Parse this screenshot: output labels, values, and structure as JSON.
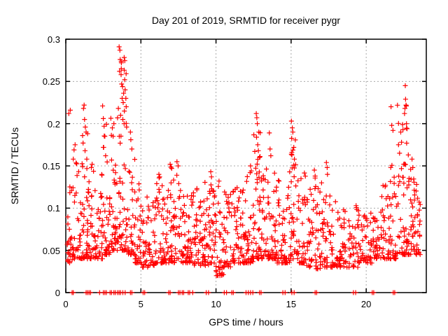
{
  "page": {
    "background": "#ffffff"
  },
  "chart_data": {
    "type": "scatter",
    "title": "Day 201 of 2019, SRMTID for receiver pygr",
    "xlabel": "GPS time / hours",
    "ylabel": "SRMTID / TECUs",
    "xlim": [
      0,
      24
    ],
    "ylim": [
      0,
      0.3
    ],
    "xticks": [
      0,
      5,
      10,
      15,
      20
    ],
    "xtick_labels": [
      "0",
      "5",
      "10",
      "15",
      "20"
    ],
    "yticks": [
      0,
      0.05,
      0.1,
      0.15,
      0.2,
      0.25,
      0.3
    ],
    "ytick_labels": [
      "0",
      "0.05",
      "0.1",
      "0.15",
      "0.2",
      "0.25",
      "0.3"
    ],
    "grid": true,
    "legend": "none",
    "marker": "plus",
    "marker_size": 7,
    "marker_color": "#ff0000",
    "axis_color": "#000000",
    "grid_color": "#a8a8a8",
    "seed": 1337,
    "band_segments": [
      [
        0.0,
        0.5,
        30,
        0.035,
        0.13,
        1.9
      ],
      [
        0.5,
        1.0,
        30,
        0.04,
        0.155,
        2.2
      ],
      [
        1.0,
        1.5,
        38,
        0.04,
        0.21,
        2.8
      ],
      [
        1.5,
        2.0,
        32,
        0.04,
        0.15,
        2.1
      ],
      [
        2.0,
        2.5,
        30,
        0.04,
        0.14,
        2.0
      ],
      [
        2.5,
        3.0,
        36,
        0.045,
        0.2,
        2.7
      ],
      [
        3.0,
        3.5,
        40,
        0.05,
        0.21,
        2.4
      ],
      [
        3.5,
        4.1,
        46,
        0.05,
        0.28,
        2.9
      ],
      [
        4.1,
        4.6,
        34,
        0.045,
        0.185,
        2.6
      ],
      [
        4.6,
        5.0,
        28,
        0.035,
        0.13,
        2.0
      ],
      [
        5.0,
        5.5,
        28,
        0.03,
        0.115,
        1.9
      ],
      [
        5.5,
        6.0,
        30,
        0.032,
        0.12,
        1.9
      ],
      [
        6.0,
        6.5,
        32,
        0.035,
        0.14,
        2.1
      ],
      [
        6.5,
        7.0,
        32,
        0.035,
        0.145,
        2.1
      ],
      [
        7.0,
        7.5,
        34,
        0.035,
        0.15,
        2.2
      ],
      [
        7.5,
        8.0,
        34,
        0.035,
        0.135,
        2.0
      ],
      [
        8.0,
        8.5,
        34,
        0.035,
        0.13,
        2.0
      ],
      [
        8.5,
        9.0,
        32,
        0.032,
        0.125,
        2.0
      ],
      [
        9.0,
        9.5,
        34,
        0.032,
        0.135,
        2.1
      ],
      [
        9.5,
        10.0,
        34,
        0.035,
        0.14,
        2.1
      ],
      [
        10.0,
        10.5,
        34,
        0.02,
        0.13,
        1.9
      ],
      [
        10.5,
        11.0,
        32,
        0.03,
        0.125,
        2.0
      ],
      [
        11.0,
        11.5,
        32,
        0.035,
        0.125,
        2.0
      ],
      [
        11.5,
        12.0,
        32,
        0.035,
        0.13,
        2.0
      ],
      [
        12.0,
        12.5,
        34,
        0.035,
        0.145,
        2.2
      ],
      [
        12.5,
        13.0,
        38,
        0.04,
        0.195,
        2.7
      ],
      [
        13.0,
        13.5,
        34,
        0.04,
        0.16,
        2.3
      ],
      [
        13.5,
        14.0,
        32,
        0.04,
        0.175,
        2.6
      ],
      [
        14.0,
        14.5,
        32,
        0.035,
        0.135,
        2.1
      ],
      [
        14.5,
        15.0,
        32,
        0.035,
        0.145,
        2.2
      ],
      [
        15.0,
        15.5,
        36,
        0.04,
        0.19,
        2.7
      ],
      [
        15.5,
        16.0,
        32,
        0.035,
        0.145,
        2.3
      ],
      [
        16.0,
        16.5,
        30,
        0.03,
        0.125,
        2.1
      ],
      [
        16.5,
        17.0,
        30,
        0.028,
        0.14,
        2.2
      ],
      [
        17.0,
        17.5,
        30,
        0.03,
        0.145,
        2.4
      ],
      [
        17.5,
        18.0,
        28,
        0.03,
        0.115,
        2.1
      ],
      [
        18.0,
        18.5,
        28,
        0.03,
        0.105,
        2.0
      ],
      [
        18.5,
        19.0,
        27,
        0.03,
        0.1,
        2.0
      ],
      [
        19.0,
        19.5,
        27,
        0.03,
        0.105,
        2.0
      ],
      [
        19.5,
        20.0,
        25,
        0.035,
        0.095,
        1.9
      ],
      [
        20.0,
        20.5,
        25,
        0.035,
        0.1,
        1.9
      ],
      [
        20.5,
        21.0,
        27,
        0.04,
        0.105,
        1.9
      ],
      [
        21.0,
        21.5,
        29,
        0.04,
        0.13,
        2.1
      ],
      [
        21.5,
        22.0,
        34,
        0.04,
        0.2,
        2.8
      ],
      [
        22.0,
        22.7,
        42,
        0.045,
        0.23,
        2.7
      ],
      [
        22.7,
        23.2,
        34,
        0.045,
        0.155,
        2.2
      ],
      [
        23.2,
        23.6,
        28,
        0.045,
        0.125,
        1.9
      ]
    ],
    "peak_points": [
      [
        0.2,
        0.212
      ],
      [
        0.3,
        0.216
      ],
      [
        0.5,
        0.158
      ],
      [
        0.55,
        0.169
      ],
      [
        0.62,
        0.175
      ],
      [
        1.12,
        0.186
      ],
      [
        1.15,
        0.177
      ],
      [
        1.18,
        0.218
      ],
      [
        1.22,
        0.222
      ],
      [
        1.25,
        0.205
      ],
      [
        1.28,
        0.168
      ],
      [
        1.3,
        0.196
      ],
      [
        1.35,
        0.19
      ],
      [
        1.4,
        0.158
      ],
      [
        1.7,
        0.148
      ],
      [
        1.75,
        0.152
      ],
      [
        2.45,
        0.221
      ],
      [
        2.5,
        0.206
      ],
      [
        2.5,
        0.172
      ],
      [
        2.55,
        0.197
      ],
      [
        2.6,
        0.185
      ],
      [
        2.65,
        0.162
      ],
      [
        3.1,
        0.195
      ],
      [
        3.15,
        0.185
      ],
      [
        3.2,
        0.2
      ],
      [
        3.5,
        0.218
      ],
      [
        3.55,
        0.291
      ],
      [
        3.58,
        0.262
      ],
      [
        3.6,
        0.287
      ],
      [
        3.62,
        0.276
      ],
      [
        3.65,
        0.21
      ],
      [
        3.68,
        0.258
      ],
      [
        3.7,
        0.272
      ],
      [
        3.72,
        0.247
      ],
      [
        3.75,
        0.23
      ],
      [
        3.78,
        0.244
      ],
      [
        3.8,
        0.205
      ],
      [
        3.82,
        0.225
      ],
      [
        3.85,
        0.236
      ],
      [
        3.88,
        0.2
      ],
      [
        3.9,
        0.215
      ],
      [
        3.92,
        0.252
      ],
      [
        3.95,
        0.24
      ],
      [
        4.0,
        0.23
      ],
      [
        4.02,
        0.22
      ],
      [
        4.05,
        0.196
      ],
      [
        4.3,
        0.19
      ],
      [
        4.33,
        0.181
      ],
      [
        4.4,
        0.17
      ],
      [
        6.2,
        0.14
      ],
      [
        6.25,
        0.137
      ],
      [
        6.95,
        0.152
      ],
      [
        7.05,
        0.147
      ],
      [
        7.4,
        0.155
      ],
      [
        7.48,
        0.15
      ],
      [
        9.65,
        0.143
      ],
      [
        9.7,
        0.137
      ],
      [
        10.2,
        0.132
      ],
      [
        12.3,
        0.15
      ],
      [
        12.35,
        0.144
      ],
      [
        12.68,
        0.212
      ],
      [
        12.7,
        0.184
      ],
      [
        12.72,
        0.207
      ],
      [
        12.75,
        0.2
      ],
      [
        12.78,
        0.175
      ],
      [
        12.82,
        0.168
      ],
      [
        12.85,
        0.19
      ],
      [
        12.9,
        0.16
      ],
      [
        13.55,
        0.189
      ],
      [
        13.6,
        0.17
      ],
      [
        13.65,
        0.162
      ],
      [
        14.2,
        0.132
      ],
      [
        15.02,
        0.203
      ],
      [
        15.05,
        0.166
      ],
      [
        15.08,
        0.195
      ],
      [
        15.12,
        0.19
      ],
      [
        15.18,
        0.172
      ],
      [
        15.22,
        0.158
      ],
      [
        16.55,
        0.145
      ],
      [
        16.6,
        0.138
      ],
      [
        17.35,
        0.154
      ],
      [
        17.4,
        0.148
      ],
      [
        17.42,
        0.14
      ],
      [
        21.65,
        0.22
      ],
      [
        21.7,
        0.198
      ],
      [
        21.78,
        0.192
      ],
      [
        22.15,
        0.175
      ],
      [
        22.22,
        0.165
      ],
      [
        22.3,
        0.19
      ],
      [
        22.35,
        0.178
      ],
      [
        22.42,
        0.199
      ],
      [
        22.45,
        0.193
      ],
      [
        22.5,
        0.152
      ],
      [
        22.55,
        0.212
      ],
      [
        22.58,
        0.218
      ],
      [
        22.6,
        0.245
      ],
      [
        22.62,
        0.229
      ],
      [
        22.65,
        0.222
      ],
      [
        22.68,
        0.2
      ],
      [
        22.72,
        0.194
      ],
      [
        22.8,
        0.163
      ],
      [
        23.05,
        0.158
      ],
      [
        23.1,
        0.148
      ],
      [
        23.35,
        0.128
      ]
    ],
    "zero_points_x": [
      0.42,
      0.5,
      1.35,
      1.45,
      1.55,
      1.65,
      2.25,
      2.5,
      2.6,
      2.7,
      2.95,
      3.05,
      3.2,
      3.3,
      3.45,
      3.55,
      3.65,
      3.8,
      3.95,
      4.3,
      4.4,
      5.15,
      5.25,
      6.85,
      6.95,
      7.5,
      7.6,
      7.75,
      7.85,
      8.15,
      8.25,
      8.45,
      9.35,
      9.5,
      10.55,
      10.7,
      11.05,
      11.15,
      12.0,
      12.15,
      12.3,
      12.45,
      12.9,
      13.0,
      14.45,
      14.6,
      15.05,
      15.2,
      16.6,
      16.7,
      19.15,
      19.3,
      20.4,
      20.5,
      21.8,
      21.9
    ]
  }
}
